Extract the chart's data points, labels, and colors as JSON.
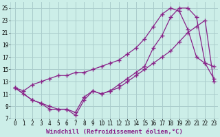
{
  "bg_color": "#cceee8",
  "grid_color": "#aacccc",
  "line_color": "#882288",
  "marker": "+",
  "markersize": 4,
  "linewidth": 0.9,
  "xlabel": "Windchill (Refroidissement éolien,°C)",
  "xlabel_fontsize": 6.5,
  "tick_fontsize": 5.5,
  "xlim": [
    -0.5,
    23.5
  ],
  "ylim": [
    7,
    26
  ],
  "yticks": [
    7,
    9,
    11,
    13,
    15,
    17,
    19,
    21,
    23,
    25
  ],
  "xticks": [
    0,
    1,
    2,
    3,
    4,
    5,
    6,
    7,
    8,
    9,
    10,
    11,
    12,
    13,
    14,
    15,
    16,
    17,
    18,
    19,
    20,
    21,
    22,
    23
  ],
  "series1_x": [
    0,
    1,
    2,
    3,
    4,
    5,
    6,
    7,
    8,
    9,
    10,
    11,
    12,
    13,
    14,
    15,
    16,
    17,
    18,
    19,
    20,
    21,
    22,
    23
  ],
  "series1_y": [
    12,
    11,
    10,
    9.5,
    8.5,
    8.5,
    8.5,
    8.0,
    10.5,
    11.5,
    11,
    11.5,
    12,
    13,
    14,
    15,
    16,
    17,
    18,
    19.5,
    21,
    22,
    23,
    13
  ],
  "series2_x": [
    0,
    1,
    2,
    3,
    4,
    5,
    6,
    7,
    8,
    9,
    10,
    11,
    12,
    13,
    14,
    15,
    16,
    17,
    18,
    19,
    20,
    21,
    22,
    23
  ],
  "series2_y": [
    12,
    11.5,
    12.5,
    13,
    13.5,
    14,
    14,
    14.5,
    14.5,
    15,
    15.5,
    16,
    16.5,
    17.5,
    18.5,
    20,
    22,
    24,
    25,
    24.5,
    21.5,
    17,
    16,
    15.5
  ],
  "series3_x": [
    0,
    2,
    3,
    4,
    5,
    6,
    7,
    8,
    9,
    10,
    11,
    12,
    13,
    14,
    15,
    16,
    17,
    18,
    19,
    20,
    21,
    22,
    23
  ],
  "series3_y": [
    12,
    10,
    9.5,
    9,
    8.5,
    8.5,
    7.5,
    10,
    11.5,
    11,
    11.5,
    12.5,
    13.5,
    14.5,
    15.5,
    18.5,
    20.5,
    23.5,
    25,
    25,
    23.5,
    16,
    13.5
  ]
}
